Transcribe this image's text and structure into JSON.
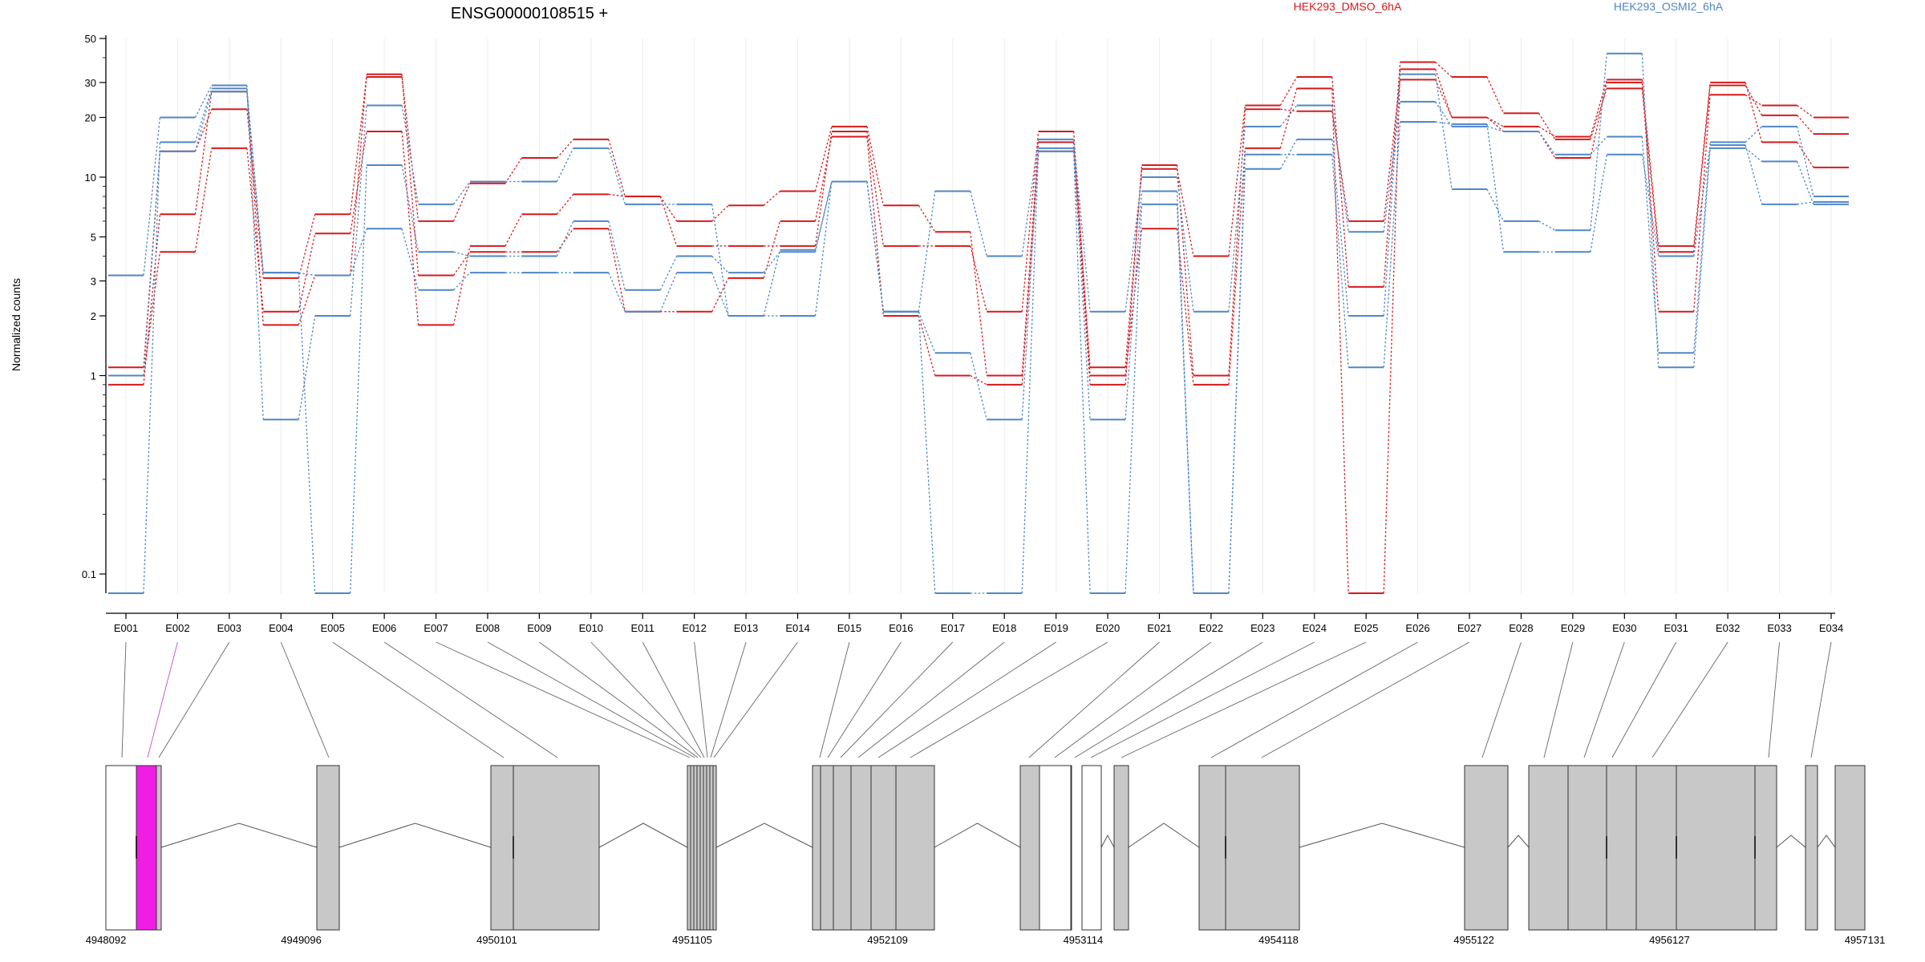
{
  "chart_data": {
    "type": "line",
    "title": "ENSG00000108515 +",
    "ylabel": "Normalized counts",
    "yscale": "log",
    "ylim": [
      0.08,
      50
    ],
    "grid": "vertical",
    "legend_placement": "top-right",
    "yticks": [
      "0.1",
      "1",
      "2",
      "3",
      "5",
      "10",
      "20",
      "30",
      "50"
    ],
    "ytick_values": [
      0.1,
      1,
      2,
      3,
      5,
      10,
      20,
      30,
      50
    ],
    "categories": [
      "E001",
      "E002",
      "E003",
      "E004",
      "E005",
      "E006",
      "E007",
      "E008",
      "E009",
      "E010",
      "E011",
      "E012",
      "E013",
      "E014",
      "E015",
      "E016",
      "E017",
      "E018",
      "E019",
      "E020",
      "E021",
      "E022",
      "E023",
      "E024",
      "E025",
      "E026",
      "E027",
      "E028",
      "E029",
      "E030",
      "E031",
      "E032",
      "E033",
      "E034"
    ],
    "series": [
      {
        "name": "HEK293_DMSO_6hA",
        "color": "#d7191c",
        "values": [
          1.0,
          4.2,
          14,
          2.1,
          5.2,
          17,
          1.8,
          4.5,
          6.5,
          8.2,
          8,
          4.5,
          4.5,
          4.5,
          17,
          4.5,
          4.5,
          2.1,
          17,
          1.0,
          5.5,
          0.9,
          14,
          28,
          0.08,
          35,
          20,
          18,
          16,
          31,
          2.1,
          26,
          23,
          20
        ]
      },
      {
        "name": "HEK293_DMSO_6hA",
        "color": "#d7191c",
        "values": [
          1.1,
          13.5,
          22,
          3.1,
          6.5,
          32,
          6.0,
          9.3,
          12.5,
          15.5,
          8,
          6.0,
          7.2,
          8.5,
          18,
          7.2,
          5.3,
          1.0,
          15,
          1.1,
          11,
          4.0,
          23,
          32,
          2.8,
          38,
          32,
          21,
          15.5,
          28,
          4.2,
          29,
          20.5,
          16.5
        ]
      },
      {
        "name": "HEK293_DMSO_6hA",
        "color": "#d7191c",
        "values": [
          0.9,
          6.5,
          27,
          1.8,
          3.2,
          33,
          3.2,
          4.2,
          4.2,
          5.5,
          2.1,
          2.1,
          3.1,
          6.0,
          16,
          2.0,
          1.0,
          0.9,
          13.5,
          0.9,
          11.5,
          1.0,
          22,
          21.5,
          6.0,
          31,
          20,
          17,
          12.5,
          30,
          4.5,
          30,
          15,
          11.2
        ]
      },
      {
        "name": "HEK293_OSMI2_6hA",
        "color": "#4f86c6",
        "values": [
          3.2,
          20,
          29,
          0.6,
          2.0,
          23,
          7.3,
          9.5,
          9.5,
          14,
          7.3,
          7.3,
          2.0,
          4.3,
          9.5,
          2.1,
          8.5,
          4.0,
          15.5,
          2.1,
          10,
          2.1,
          18,
          23,
          5.3,
          24,
          18,
          17,
          13,
          16,
          1.3,
          15,
          18,
          8
        ]
      },
      {
        "name": "HEK293_OSMI2_6hA",
        "color": "#4f86c6",
        "values": [
          0.08,
          15,
          28,
          3.3,
          0.08,
          11.5,
          4.2,
          4.0,
          4.0,
          6.0,
          2.7,
          4.0,
          3.3,
          4.2,
          9.5,
          2.1,
          1.3,
          0.6,
          14,
          0.6,
          8.5,
          0.08,
          11,
          15.5,
          2.0,
          33,
          8.7,
          6.0,
          5.4,
          42,
          1.1,
          14,
          12,
          7.3
        ]
      },
      {
        "name": "HEK293_OSMI2_6hA",
        "color": "#4f86c6",
        "values": [
          1.0,
          13.5,
          27,
          3.3,
          3.2,
          5.5,
          2.7,
          3.3,
          3.3,
          3.3,
          2.1,
          3.3,
          2.0,
          2.0,
          9.5,
          2.1,
          0.08,
          0.08,
          13.5,
          0.08,
          7.3,
          0.08,
          13,
          13,
          1.1,
          19,
          18.5,
          4.2,
          4.2,
          13,
          4.0,
          14.5,
          7.3,
          7.5
        ]
      }
    ],
    "genome": {
      "tick_labels": [
        "4948092",
        "4949096",
        "4950101",
        "4951105",
        "4952109",
        "4953114",
        "4954118",
        "4955122",
        "4956127",
        "4957131"
      ],
      "tick_values": [
        4948092,
        4949096,
        4950101,
        4951105,
        4952109,
        4953114,
        4954118,
        4955122,
        4956127,
        4957131
      ],
      "highlight_color": "#f01de5",
      "exon_color": "#c8c8c8",
      "utr_color": "#ffffff"
    }
  },
  "legend": [
    "HEK293_DMSO_6hA",
    "HEK293_OSMI2_6hA"
  ],
  "colors": {
    "dmso": "#d7191c",
    "osmi": "#4f86c6"
  }
}
